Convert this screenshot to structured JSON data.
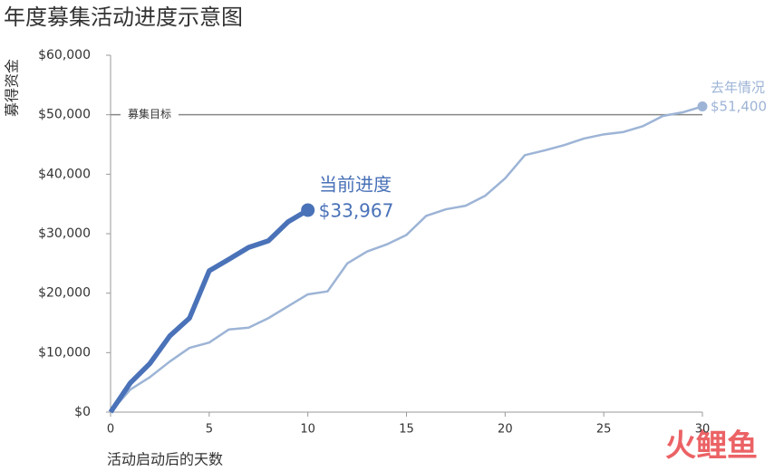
{
  "chart_data": {
    "type": "line",
    "title": "年度募集活动进度示意图",
    "y_label": "募得资金",
    "x_label": "活动启动后的天数",
    "x": [
      0,
      1,
      2,
      3,
      4,
      5,
      6,
      7,
      8,
      9,
      10,
      11,
      12,
      13,
      14,
      15,
      16,
      17,
      18,
      19,
      20,
      21,
      22,
      23,
      24,
      25,
      26,
      27,
      28,
      29,
      30
    ],
    "series": [
      {
        "name": "当前进度",
        "color": "#4a72b8",
        "values": [
          0,
          4900,
          8200,
          12800,
          15800,
          23750,
          25700,
          27700,
          28800,
          32000,
          33967,
          null,
          null,
          null,
          null,
          null,
          null,
          null,
          null,
          null,
          null,
          null,
          null,
          null,
          null,
          null,
          null,
          null,
          null,
          null,
          null
        ],
        "value_labels": [
          null,
          null,
          null,
          null,
          null,
          null,
          null,
          null,
          null,
          null,
          "$33,967",
          null,
          null,
          null,
          null,
          null,
          null,
          null,
          null,
          null,
          null,
          null,
          null,
          null,
          null,
          null,
          null,
          null,
          null,
          null,
          null
        ]
      },
      {
        "name": "去年情况",
        "color": "#9db4d6",
        "values": [
          0,
          3800,
          5900,
          8500,
          10800,
          11700,
          13900,
          14200,
          15800,
          17800,
          19800,
          20300,
          25000,
          27000,
          28200,
          29800,
          33000,
          34100,
          34700,
          36400,
          39300,
          43200,
          44000,
          44900,
          46000,
          46700,
          47100,
          48100,
          49800,
          50400,
          51400
        ],
        "value_labels": [
          null,
          null,
          null,
          null,
          null,
          null,
          null,
          null,
          null,
          null,
          null,
          null,
          null,
          null,
          null,
          null,
          null,
          null,
          null,
          null,
          null,
          null,
          null,
          null,
          null,
          null,
          null,
          null,
          null,
          null,
          "$51,400"
        ]
      }
    ],
    "goal": {
      "label": "募集目标",
      "value": 50000
    },
    "xlim": [
      0,
      30
    ],
    "xticks": [
      0,
      5,
      10,
      15,
      20,
      25,
      30
    ],
    "ylim": [
      0,
      60000
    ],
    "yticks": [
      {
        "value": 0,
        "label": "$0"
      },
      {
        "value": 10000,
        "label": "$10,000"
      },
      {
        "value": 20000,
        "label": "$20,000"
      },
      {
        "value": 30000,
        "label": "$30,000"
      },
      {
        "value": 40000,
        "label": "$40,000"
      },
      {
        "value": 50000,
        "label": "$50,000"
      },
      {
        "value": 60000,
        "label": "$60,000"
      }
    ],
    "watermark": "火鲤鱼"
  }
}
